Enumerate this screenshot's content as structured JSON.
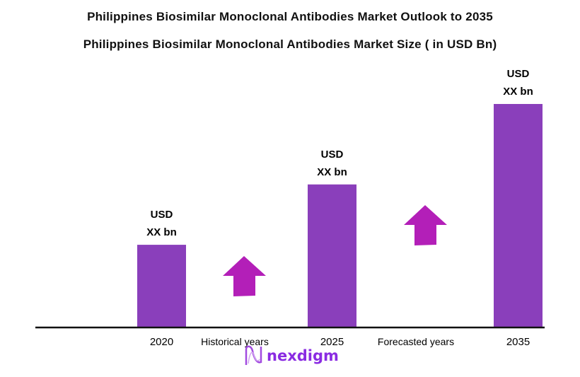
{
  "title": "Philippines Biosimilar Monoclonal Antibodies Market Outlook to 2035",
  "subtitle": "Philippines Biosimilar Monoclonal Antibodies  Market Size  ( in USD Bn)",
  "logo_text": "nexdigm",
  "chart_data": {
    "type": "bar",
    "categories": [
      "2020",
      "2025",
      "2035"
    ],
    "data_labels": [
      [
        "USD",
        "XX bn"
      ],
      [
        "USD",
        "XX bn"
      ],
      [
        "USD",
        "XX bn"
      ]
    ],
    "relative_values": [
      0.37,
      0.64,
      1.0
    ],
    "period_labels": [
      "Historical years",
      "Forecasted years"
    ],
    "grid": false,
    "colors": {
      "bar": "#8a3fbb",
      "arrow": "#b31fb8",
      "axis": "#111111"
    }
  }
}
